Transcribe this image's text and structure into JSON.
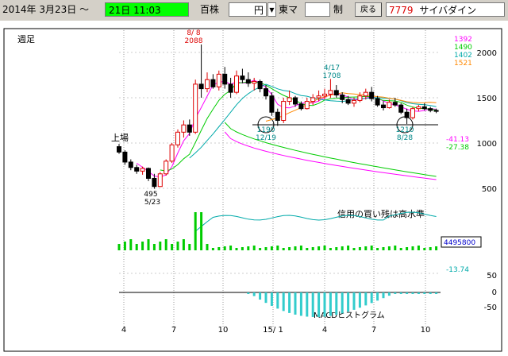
{
  "toolbar": {
    "date_text": "2014年 3月23日 ～",
    "end_date_text": "21日 11:03",
    "unit_label": "百株",
    "currency_value": "円",
    "market_label": "東マ",
    "limit_label": "制",
    "back_button": "戻る",
    "stock_code": "7779",
    "stock_name": "サイバダイン"
  },
  "chart_data": {
    "type": "line",
    "title": "週足",
    "x_tick_labels": [
      "4",
      "7",
      "10",
      "15/ 1",
      "4",
      "7",
      "10"
    ],
    "price_axis": {
      "ticks": [
        500,
        1000,
        1500,
        2000
      ],
      "ylim": [
        500,
        2100
      ]
    },
    "moving_average_legend": [
      {
        "value": "1392",
        "color": "#ff00ff"
      },
      {
        "value": "1490",
        "color": "#00cc00"
      },
      {
        "value": "1402",
        "color": "#00aaaa"
      },
      {
        "value": "1521",
        "color": "#ff8800"
      }
    ],
    "oscillator_legend": [
      {
        "value": "-41.13",
        "color": "#ff00ff"
      },
      {
        "value": "-27.38",
        "color": "#00cc00"
      }
    ],
    "volume_value": "4495800",
    "macd_value": "-13.74",
    "macd_axis": {
      "ticks": [
        50,
        0,
        -50
      ],
      "ylim": [
        -60,
        60
      ]
    },
    "annotations": {
      "listing": "上場",
      "high_date": "8/ 8",
      "high_value": "2088",
      "low_value": "495",
      "low_date": "5/23",
      "apr_peak_date": "4/17",
      "apr_peak_value": "1708",
      "support_left_value": "1190",
      "support_left_date": "12/19",
      "support_right_value": "1210",
      "support_right_date": "8/28",
      "margin_note": "信用の買い残は高水準",
      "macd_label": "MACDヒストグラム"
    },
    "candles": [
      [
        960,
        990,
        880,
        900
      ],
      [
        900,
        920,
        760,
        790
      ],
      [
        790,
        820,
        700,
        730
      ],
      [
        730,
        760,
        660,
        690
      ],
      [
        690,
        740,
        650,
        720
      ],
      [
        720,
        730,
        580,
        610
      ],
      [
        610,
        660,
        495,
        520
      ],
      [
        520,
        680,
        515,
        660
      ],
      [
        660,
        820,
        640,
        800
      ],
      [
        800,
        1000,
        780,
        980
      ],
      [
        980,
        1150,
        950,
        1120
      ],
      [
        1120,
        1250,
        1060,
        1200
      ],
      [
        1200,
        1260,
        1080,
        1120
      ],
      [
        1120,
        1700,
        1100,
        1650
      ],
      [
        1650,
        2088,
        1500,
        1600
      ],
      [
        1600,
        1780,
        1560,
        1700
      ],
      [
        1700,
        1760,
        1600,
        1620
      ],
      [
        1620,
        1800,
        1580,
        1760
      ],
      [
        1760,
        1840,
        1600,
        1650
      ],
      [
        1650,
        1720,
        1500,
        1560
      ],
      [
        1560,
        1800,
        1540,
        1740
      ],
      [
        1740,
        1820,
        1660,
        1700
      ],
      [
        1700,
        1780,
        1620,
        1660
      ],
      [
        1660,
        1720,
        1580,
        1680
      ],
      [
        1680,
        1700,
        1560,
        1600
      ],
      [
        1600,
        1640,
        1480,
        1520
      ],
      [
        1520,
        1560,
        1300,
        1340
      ],
      [
        1340,
        1380,
        1190,
        1250
      ],
      [
        1250,
        1500,
        1220,
        1460
      ],
      [
        1460,
        1580,
        1420,
        1500
      ],
      [
        1500,
        1520,
        1400,
        1430
      ],
      [
        1430,
        1460,
        1360,
        1380
      ],
      [
        1380,
        1500,
        1370,
        1460
      ],
      [
        1460,
        1540,
        1420,
        1500
      ],
      [
        1500,
        1580,
        1460,
        1520
      ],
      [
        1520,
        1600,
        1480,
        1540
      ],
      [
        1540,
        1708,
        1500,
        1580
      ],
      [
        1580,
        1640,
        1500,
        1530
      ],
      [
        1530,
        1560,
        1440,
        1480
      ],
      [
        1480,
        1520,
        1420,
        1440
      ],
      [
        1440,
        1500,
        1400,
        1470
      ],
      [
        1470,
        1560,
        1450,
        1520
      ],
      [
        1520,
        1600,
        1480,
        1560
      ],
      [
        1560,
        1620,
        1460,
        1490
      ],
      [
        1490,
        1520,
        1400,
        1420
      ],
      [
        1420,
        1460,
        1360,
        1390
      ],
      [
        1390,
        1480,
        1380,
        1450
      ],
      [
        1450,
        1500,
        1400,
        1420
      ],
      [
        1420,
        1440,
        1320,
        1340
      ],
      [
        1340,
        1380,
        1210,
        1280
      ],
      [
        1280,
        1400,
        1260,
        1380
      ],
      [
        1380,
        1420,
        1350,
        1400
      ],
      [
        1400,
        1440,
        1360,
        1380
      ],
      [
        1380,
        1400,
        1340,
        1360
      ],
      [
        1360,
        1380,
        1330,
        1350
      ]
    ]
  }
}
